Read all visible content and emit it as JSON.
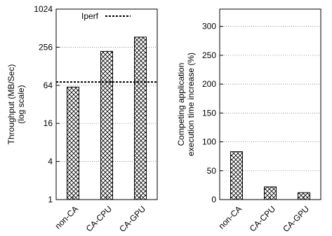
{
  "chart_data": [
    {
      "type": "bar",
      "ylabel": "Throughput (MB/Sec)",
      "ylabel2": "(log scale)",
      "y_scale": "log2",
      "ylim": [
        1,
        1024
      ],
      "yticks": [
        1,
        4,
        16,
        64,
        256,
        1024
      ],
      "categories": [
        "non-CA",
        "CA-CPU",
        "CA-GPU"
      ],
      "values": [
        60,
        220,
        370
      ],
      "reference_line": {
        "name": "Iperf",
        "value": 72
      },
      "legend_position": "top-left",
      "grid": "horizontal dotted",
      "fill_pattern": "crosshatch"
    },
    {
      "type": "bar",
      "ylabel": "Competing application",
      "ylabel2": "execution time increase (%)",
      "ylim": [
        0,
        330
      ],
      "yticks": [
        0,
        50,
        100,
        150,
        200,
        250,
        300
      ],
      "categories": [
        "non-CA",
        "CA-CPU",
        "CA-GPU"
      ],
      "values": [
        83,
        22,
        12
      ],
      "grid": "horizontal dotted",
      "fill_pattern": "crosshatch"
    }
  ]
}
